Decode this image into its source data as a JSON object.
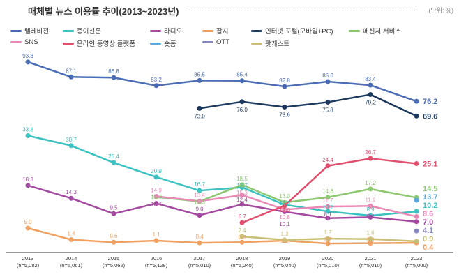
{
  "chart_data": {
    "type": "line",
    "title": "매체별 뉴스 이용률 추이(2013~2023년)",
    "unit_note": "(단위: %)",
    "categories": [
      "2013",
      "2014",
      "2015",
      "2016",
      "2017",
      "2018",
      "2019",
      "2020",
      "2021",
      "2023"
    ],
    "sample_sizes": [
      "(n=5,082)",
      "(n=5,061)",
      "(n=5,062)",
      "(n=5,128)",
      "(n=5,010)",
      "(n=5,040)",
      "(n=5,040)",
      "(n=5,010)",
      "(n=5,010)",
      "(n=5,000)"
    ],
    "grid": false,
    "legend_position": "top",
    "series": [
      {
        "name": "텔레비전",
        "color": "#4a6db5",
        "values": [
          93.8,
          87.1,
          86.8,
          83.2,
          85.5,
          85.4,
          82.8,
          85.0,
          83.4,
          76.2
        ]
      },
      {
        "name": "종이신문",
        "color": "#3cc2c0",
        "values": [
          33.8,
          30.7,
          25.4,
          20.9,
          16.7,
          17.7,
          12.3,
          10.2,
          8.9,
          10.2
        ]
      },
      {
        "name": "라디오",
        "color": "#a44aa0",
        "values": [
          18.3,
          14.3,
          9.5,
          12.7,
          9.0,
          12.4,
          10.1,
          8.1,
          8.4,
          7.0
        ]
      },
      {
        "name": "잡지",
        "color": "#f0a060",
        "values": [
          5.0,
          1.4,
          0.6,
          1.1,
          0.4,
          0.6,
          1.1,
          0.2,
          0.3,
          0.4
        ]
      },
      {
        "name": "인터넷 포털(모바일+PC)",
        "color": "#1f3a5f",
        "values": [
          null,
          null,
          null,
          null,
          73.0,
          76.0,
          73.6,
          75.8,
          79.2,
          69.6
        ]
      },
      {
        "name": "메신저 서비스",
        "color": "#8cc870",
        "values": [
          null,
          null,
          null,
          14.7,
          13.3,
          18.5,
          13.0,
          14.6,
          17.2,
          14.5
        ]
      },
      {
        "name": "SNS",
        "color": "#e88ab5",
        "values": [
          null,
          null,
          null,
          14.9,
          13.4,
          15.3,
          10.8,
          11.7,
          11.9,
          8.6
        ]
      },
      {
        "name": "온라인 동영상 플랫폼",
        "color": "#e0506e",
        "values": [
          null,
          null,
          null,
          null,
          null,
          6.7,
          12.0,
          24.4,
          26.7,
          25.1
        ]
      },
      {
        "name": "숏폼",
        "color": "#5aa8dc",
        "values": [
          null,
          null,
          null,
          null,
          null,
          null,
          null,
          null,
          null,
          13.7
        ]
      },
      {
        "name": "OTT",
        "color": "#8888c0",
        "values": [
          null,
          null,
          null,
          null,
          null,
          null,
          null,
          null,
          null,
          4.1
        ]
      },
      {
        "name": "팟캐스트",
        "color": "#c8c078",
        "values": [
          null,
          null,
          null,
          null,
          null,
          2.4,
          1.3,
          1.7,
          1.6,
          0.9
        ]
      }
    ]
  }
}
